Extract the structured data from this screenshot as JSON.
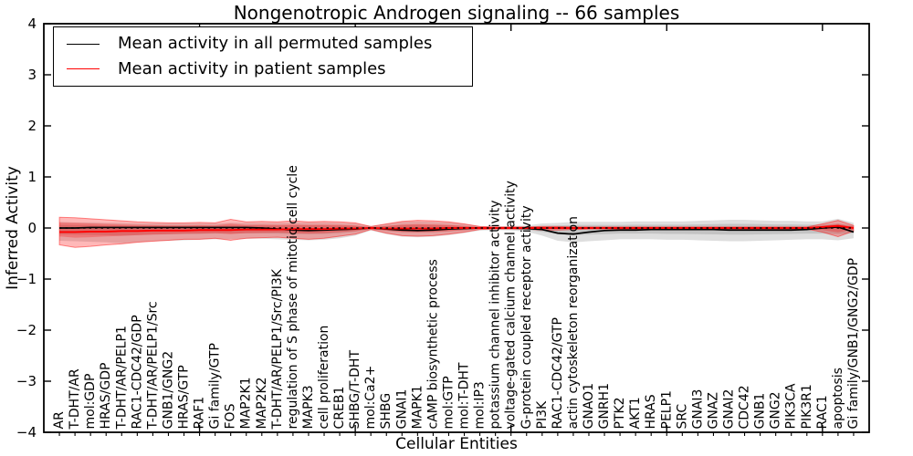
{
  "chart": {
    "title": "Nongenotropic Androgen signaling -- 66 samples",
    "xlabel": "Cellular Entities",
    "ylabel": "Inferred Activity",
    "legend": [
      {
        "label": "Mean activity in all permuted samples",
        "color": "#000000"
      },
      {
        "label": "Mean activity in patient samples",
        "color": "#ff0000"
      }
    ]
  },
  "chart_data": {
    "type": "line",
    "title": "Nongenotropic Androgen signaling -- 66 samples",
    "xlabel": "Cellular Entities",
    "ylabel": "Inferred Activity",
    "ylim": [
      -4,
      4
    ],
    "yticks": [
      -4,
      -3,
      -2,
      -1,
      0,
      1,
      2,
      3,
      4
    ],
    "xlim": [
      0,
      53
    ],
    "xticks_major": [
      10,
      20,
      30,
      40,
      50
    ],
    "grid": false,
    "legend_position": "upper left",
    "baseline": {
      "value": 0,
      "style": "dotted",
      "color": "#000000"
    },
    "categories": [
      "AR",
      "T-DHT/AR",
      "mol:GDP",
      "HRAS/GDP",
      "T-DHT/AR/PELP1",
      "RAC1-CDC42/GDP",
      "T-DHT/AR/PELP1/Src",
      "GNB1/GNG2",
      "HRAS/GTP",
      "RAF1",
      "Gi family/GTP",
      "FOS",
      "MAP2K1",
      "MAP2K2",
      "T-DHT/AR/PELP1/Src/PI3K",
      "regulation of S phase of mitotic cell cycle",
      "MAPK3",
      "cell proliferation",
      "CREB1",
      "SHBG/T-DHT",
      "mol:Ca2+",
      "SHBG",
      "GNAI1",
      "MAPK1",
      "cAMP biosynthetic process",
      "mol:GTP",
      "mol:T-DHT",
      "mol:IP3",
      "potassium channel inhibitor activity",
      "voltage-gated calcium channel activity",
      "G-protein coupled receptor activity",
      "PI3K",
      "RAC1-CDC42/GTP",
      "actin cytoskeleton reorganization",
      "GNAO1",
      "GNRH1",
      "PTK2",
      "AKT1",
      "HRAS",
      "PELP1",
      "SRC",
      "GNAI3",
      "GNAZ",
      "GNAI2",
      "CDC42",
      "GNB1",
      "GNG2",
      "PIK3CA",
      "PIK3R1",
      "RAC1",
      "apoptosis",
      "Gi family/GNB1/GNG2/GDP"
    ],
    "series": [
      {
        "name": "Mean activity in all permuted samples",
        "color": "#000000",
        "style": "solid",
        "values": [
          0.0,
          0.0,
          0.01,
          0.01,
          0.01,
          0.01,
          0.01,
          0.01,
          0.01,
          0.01,
          0.01,
          0.01,
          0.01,
          0.0,
          -0.02,
          -0.04,
          -0.05,
          -0.04,
          -0.03,
          -0.02,
          0.0,
          -0.02,
          -0.04,
          -0.05,
          -0.04,
          -0.02,
          -0.01,
          0.0,
          0.0,
          0.0,
          -0.01,
          -0.03,
          -0.1,
          -0.12,
          -0.08,
          -0.05,
          -0.04,
          -0.04,
          -0.03,
          -0.03,
          -0.03,
          -0.03,
          -0.03,
          -0.04,
          -0.04,
          -0.04,
          -0.04,
          -0.04,
          -0.03,
          0.0,
          0.02,
          -0.08
        ]
      },
      {
        "name": "Mean activity in patient samples",
        "color": "#ff0000",
        "style": "solid",
        "values": [
          -0.08,
          -0.08,
          -0.07,
          -0.07,
          -0.06,
          -0.06,
          -0.05,
          -0.05,
          -0.05,
          -0.04,
          -0.04,
          -0.04,
          -0.03,
          -0.03,
          -0.03,
          -0.02,
          -0.02,
          -0.02,
          -0.01,
          -0.01,
          0.0,
          -0.01,
          -0.01,
          -0.01,
          -0.01,
          0.0,
          0.0,
          0.0,
          0.0,
          0.0,
          0.0,
          0.0,
          0.0,
          0.0,
          0.0,
          0.0,
          0.0,
          0.0,
          0.0,
          0.0,
          0.0,
          0.0,
          0.0,
          0.0,
          0.0,
          0.0,
          0.0,
          0.0,
          0.0,
          0.02,
          0.04,
          0.0
        ]
      }
    ],
    "bands": [
      {
        "name": "permuted-samples-band",
        "color": "#000000",
        "opacity": 0.13,
        "upper": [
          0.12,
          0.11,
          0.11,
          0.1,
          0.1,
          0.09,
          0.09,
          0.09,
          0.09,
          0.09,
          0.09,
          0.1,
          0.1,
          0.1,
          0.1,
          0.11,
          0.11,
          0.11,
          0.1,
          0.09,
          0.04,
          0.08,
          0.12,
          0.13,
          0.12,
          0.11,
          0.08,
          0.04,
          0.03,
          0.04,
          0.05,
          0.09,
          0.1,
          0.12,
          0.12,
          0.12,
          0.12,
          0.13,
          0.13,
          0.13,
          0.13,
          0.14,
          0.15,
          0.16,
          0.16,
          0.15,
          0.14,
          0.14,
          0.13,
          0.13,
          0.18,
          0.1
        ],
        "lower": [
          -0.25,
          -0.26,
          -0.27,
          -0.28,
          -0.3,
          -0.28,
          -0.26,
          -0.25,
          -0.24,
          -0.23,
          -0.22,
          -0.22,
          -0.21,
          -0.21,
          -0.22,
          -0.23,
          -0.24,
          -0.23,
          -0.2,
          -0.15,
          -0.05,
          -0.12,
          -0.17,
          -0.18,
          -0.17,
          -0.14,
          -0.1,
          -0.05,
          -0.04,
          -0.05,
          -0.07,
          -0.15,
          -0.25,
          -0.28,
          -0.26,
          -0.24,
          -0.22,
          -0.22,
          -0.22,
          -0.23,
          -0.23,
          -0.24,
          -0.25,
          -0.26,
          -0.26,
          -0.25,
          -0.24,
          -0.23,
          -0.22,
          -0.22,
          -0.24,
          -0.2
        ]
      },
      {
        "name": "patient-samples-band",
        "color": "#ff0000",
        "opacity": 0.28,
        "upper": [
          0.21,
          0.2,
          0.18,
          0.16,
          0.14,
          0.12,
          0.11,
          0.1,
          0.1,
          0.11,
          0.1,
          0.17,
          0.12,
          0.13,
          0.12,
          0.14,
          0.12,
          0.13,
          0.12,
          0.1,
          0.03,
          0.08,
          0.13,
          0.15,
          0.14,
          0.12,
          0.08,
          0.03,
          0.02,
          0.02,
          0.02,
          0.03,
          0.03,
          0.02,
          0.02,
          0.02,
          0.02,
          0.02,
          0.02,
          0.02,
          0.02,
          0.02,
          0.02,
          0.02,
          0.02,
          0.02,
          0.02,
          0.02,
          0.02,
          0.08,
          0.15,
          0.05
        ],
        "lower": [
          -0.33,
          -0.38,
          -0.36,
          -0.33,
          -0.31,
          -0.28,
          -0.26,
          -0.24,
          -0.22,
          -0.22,
          -0.2,
          -0.24,
          -0.2,
          -0.19,
          -0.18,
          -0.2,
          -0.22,
          -0.2,
          -0.16,
          -0.12,
          -0.03,
          -0.1,
          -0.15,
          -0.16,
          -0.15,
          -0.12,
          -0.08,
          -0.03,
          -0.02,
          -0.02,
          -0.02,
          -0.04,
          -0.04,
          -0.03,
          -0.02,
          -0.02,
          -0.02,
          -0.02,
          -0.02,
          -0.02,
          -0.02,
          -0.02,
          -0.02,
          -0.02,
          -0.02,
          -0.02,
          -0.02,
          -0.02,
          -0.02,
          -0.08,
          -0.17,
          -0.06
        ]
      }
    ]
  }
}
